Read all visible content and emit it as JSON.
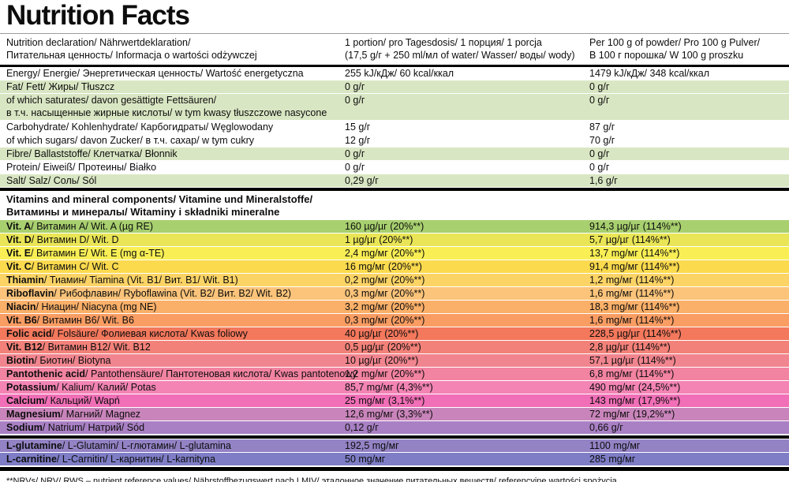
{
  "title": "Nutrition Facts",
  "colors": {
    "macro_green": "#d9e6c3",
    "white": "#ffffff",
    "black_rule": "#000000"
  },
  "header": {
    "declaration_line1": "Nutrition declaration/ Nährwertdeklaration/",
    "declaration_line2": "Питательная ценность/ Informacja o wartości odżywczej",
    "portion_line1": "1 portion/ pro Tagesdosis/ 1 порция/ 1 porcja",
    "portion_line2": "(17,5 g/г + 250 ml/мл of water/ Wasser/ воды/ wody)",
    "per100_line1": "Per 100 g of powder/ Pro 100 g Pulver/",
    "per100_line2": "В 100 г порошка/ W 100 g proszku"
  },
  "macro_section": {
    "rows": [
      {
        "name": "",
        "rest": "Energy/ Energie/ Энергетическая ценность/ Wartość energetyczna",
        "rest2": "",
        "per_portion": "255 kJ/кДж/ 60 kcal/ккал",
        "per_100g": "1479 kJ/кДж/ 348 kcal/ккал",
        "bg": "#ffffff"
      },
      {
        "name": "",
        "rest": "Fat/ Fett/ Жиры/ Tłuszcz",
        "rest2": "",
        "per_portion": "0 g/г",
        "per_100g": "0 g/г",
        "bg": "#d9e6c3"
      },
      {
        "name": "",
        "rest": "of which saturates/ davon gesättigte Fettsäuren/",
        "rest2": "в т.ч. насыщенные жирные кислоты/ w tym kwasy tłuszczowe nasycone",
        "per_portion": "0 g/г",
        "per_100g": "0 g/г",
        "bg": "#d9e6c3"
      },
      {
        "name": "",
        "rest": "Carbohydrate/ Kohlenhydrate/ Карбогидраты/ Węglowodany",
        "rest2": "",
        "per_portion": "15 g/г",
        "per_100g": "87 g/г",
        "bg": "#ffffff"
      },
      {
        "name": "",
        "rest": "of which sugars/ davon Zucker/ в т.ч. сахар/ w tym cukry",
        "rest2": "",
        "per_portion": "12 g/г",
        "per_100g": "70 g/г",
        "bg": "#ffffff"
      },
      {
        "name": "",
        "rest": "Fibre/ Ballaststoffe/ Клетчатка/ Błonnik",
        "rest2": "",
        "per_portion": "0 g/г",
        "per_100g": "0 g/г",
        "bg": "#d9e6c3"
      },
      {
        "name": "",
        "rest": "Protein/ Eiweiß/ Протеины/ Białko",
        "rest2": "",
        "per_portion": "0 g/г",
        "per_100g": "0 g/г",
        "bg": "#ffffff"
      },
      {
        "name": "",
        "rest": "Salt/ Salz/ Соль/ Sól",
        "rest2": "",
        "per_portion": "0,29 g/г",
        "per_100g": "1,6 g/г",
        "bg": "#d9e6c3"
      }
    ]
  },
  "vitamins_section": {
    "heading_line1": "Vitamins and mineral components/ Vitamine und Mineralstoffe/",
    "heading_line2": "Витамины и минералы/ Witaminy i składniki mineralne",
    "rows": [
      {
        "name": "Vit. A",
        "rest": "/ Витамин A/ Wit. A (µg RE)",
        "rest2": "",
        "per_portion": "160 µg/µг (20%**)",
        "per_100g": "914,3 µg/µг (114%**)",
        "bg": "#a8d06f"
      },
      {
        "name": "Vit. D",
        "rest": "/ Витамин D/ Wit. D",
        "rest2": "",
        "per_portion": "1 µg/µг (20%**)",
        "per_100g": "5,7 µg/µг (114%**)",
        "bg": "#e9e556"
      },
      {
        "name": "Vit. E",
        "rest": "/ Витамин E/ Wit. E (mg α-TE)",
        "rest2": "",
        "per_portion": "2,4 mg/мг (20%**)",
        "per_100g": "13,7 mg/мг (114%**)",
        "bg": "#f9ef55"
      },
      {
        "name": "Vit. C",
        "rest": "/ Витамин C/ Wit. C",
        "rest2": "",
        "per_portion": "16 mg/мг (20%**)",
        "per_100g": "91,4 mg/мг (114%**)",
        "bg": "#fbda4e"
      },
      {
        "name": "Thiamin",
        "rest": "/ Тиамин/ Tiamina (Vit. B1/ Вит. B1/ Wit. B1)",
        "rest2": "",
        "per_portion": "0,2 mg/мг (20%**)",
        "per_100g": "1,2 mg/мг (114%**)",
        "bg": "#fcd466"
      },
      {
        "name": "Riboflavin",
        "rest": "/ Рибофлавин/ Ryboflawina (Vit. B2/ Вит. B2/ Wit. B2)",
        "rest2": "",
        "per_portion": "0,3 mg/мг (20%**)",
        "per_100g": "1,6 mg/мг (114%**)",
        "bg": "#fbc47a"
      },
      {
        "name": "Niacin",
        "rest": "/ Ниацин/ Niacyna (mg NE)",
        "rest2": "",
        "per_portion": "3,2 mg/мг (20%**)",
        "per_100g": "18,3 mg/мг (114%**)",
        "bg": "#fab069"
      },
      {
        "name": "Vit. B6",
        "rest": "/ Витамин B6/ Wit. B6",
        "rest2": "",
        "per_portion": "0,3 mg/мг (20%**)",
        "per_100g": "1,6 mg/мг (114%**)",
        "bg": "#f99d63"
      },
      {
        "name": "Folic acid",
        "rest": "/ Folsäure/ Фолиевая кислота/ Kwas foliowy",
        "rest2": "",
        "per_portion": "40 µg/µг (20%**)",
        "per_100g": "228,5 µg/µг (114%**)",
        "bg": "#f3785c"
      },
      {
        "name": "Vit. B12",
        "rest": "/ Витамин B12/ Wit. B12",
        "rest2": "",
        "per_portion": "0,5 µg/µг (20%**)",
        "per_100g": "2,8 µg/µг (114%**)",
        "bg": "#f28179"
      },
      {
        "name": "Biotin",
        "rest": "/ Биотин/ Biotyna",
        "rest2": "",
        "per_portion": "10 µg/µг (20%**)",
        "per_100g": "57,1 µg/µг (114%**)",
        "bg": "#f1858f"
      },
      {
        "name": "Pantothenic acid",
        "rest": "/ Pantothensäure/ Пантотеновая кислота/ Kwas pantotenowy",
        "rest2": "",
        "per_portion": "1,2 mg/мг (20%**)",
        "per_100g": "6,8 mg/мг (114%**)",
        "bg": "#f283a1"
      },
      {
        "name": "Potassium",
        "rest": "/ Kalium/ Калий/ Potas",
        "rest2": "",
        "per_portion": "85,7 mg/мг (4,3%**)",
        "per_100g": "490 mg/мг (24,5%**)",
        "bg": "#f384b4"
      },
      {
        "name": "Calcium",
        "rest": "/ Кальций/ Wapń",
        "rest2": "",
        "per_portion": "25 mg/мг (3,1%**)",
        "per_100g": "143 mg/мг (17,9%**)",
        "bg": "#f06fb6"
      },
      {
        "name": "Magnesium",
        "rest": "/ Магний/ Magnez",
        "rest2": "",
        "per_portion": "12,6 mg/мг (3,3%**)",
        "per_100g": "72 mg/мг (19,2%**)",
        "bg": "#c985bb"
      },
      {
        "name": "Sodium",
        "rest": "/ Natrium/ Натрий/ Sód",
        "rest2": "",
        "per_portion": "0,12 g/г",
        "per_100g": "0,66 g/г",
        "bg": "#a980c4"
      }
    ]
  },
  "amino_section": {
    "rows": [
      {
        "name": "L-glutamine",
        "rest": "/ L-Glutamin/ L-глютамин/ L-glutamina",
        "rest2": "",
        "per_portion": "192,5 mg/мг",
        "per_100g": "1100 mg/мг",
        "bg": "#9383c5"
      },
      {
        "name": "L-carnitine",
        "rest": "/ L-Carnitin/ L-карнитин/ L-karnityna",
        "rest2": "",
        "per_portion": "50 mg/мг",
        "per_100g": "285 mg/мг",
        "bg": "#7e7dc6"
      }
    ]
  },
  "footnote": "**NRVs/ NRV/ RWS – nutrient reference values/ Nährstoffbezugswert nach LMIV/ эталонное значение питательных веществ/ referencyjne wartości spożycia."
}
